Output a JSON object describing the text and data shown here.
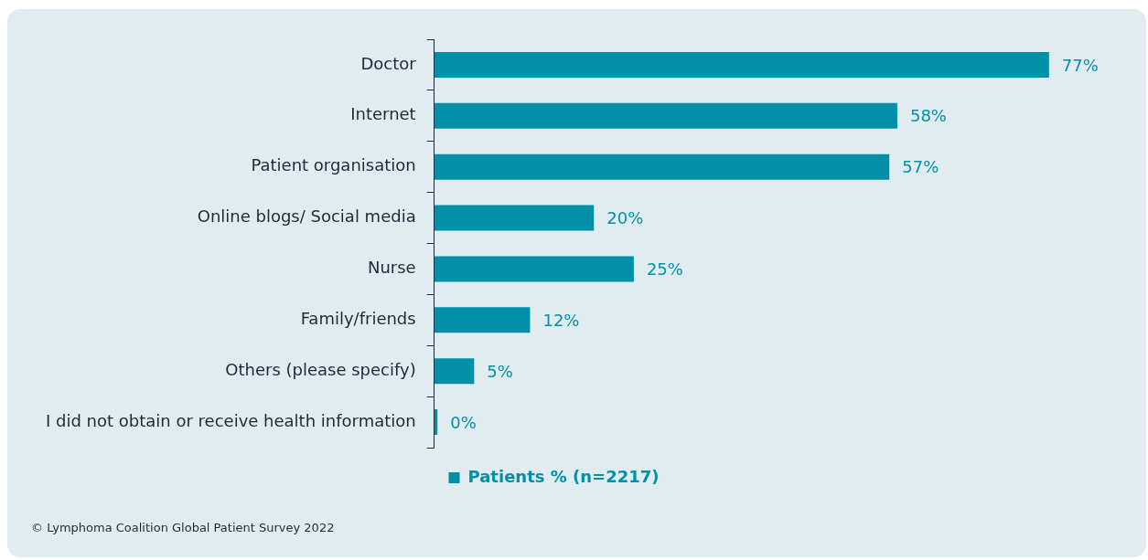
{
  "chart_data": {
    "type": "bar",
    "orientation": "horizontal",
    "categories": [
      "Doctor",
      "Internet",
      "Patient organisation",
      "Online blogs/ Social media",
      "Nurse",
      "Family/friends",
      "Others (please specify)",
      "I did not obtain or receive health information"
    ],
    "series": [
      {
        "name": "Patients % (n=2217)",
        "color": "#0090a8",
        "values": [
          77,
          58,
          57,
          20,
          25,
          12,
          5,
          0.4
        ],
        "value_labels": [
          "77%",
          "58%",
          "57%",
          "20%",
          "25%",
          "12%",
          "5%",
          "0%"
        ]
      }
    ],
    "legend": "bottom",
    "grid": false,
    "annotations": [
      "© Lymphoma Coalition Global Patient Survey 2022"
    ]
  }
}
